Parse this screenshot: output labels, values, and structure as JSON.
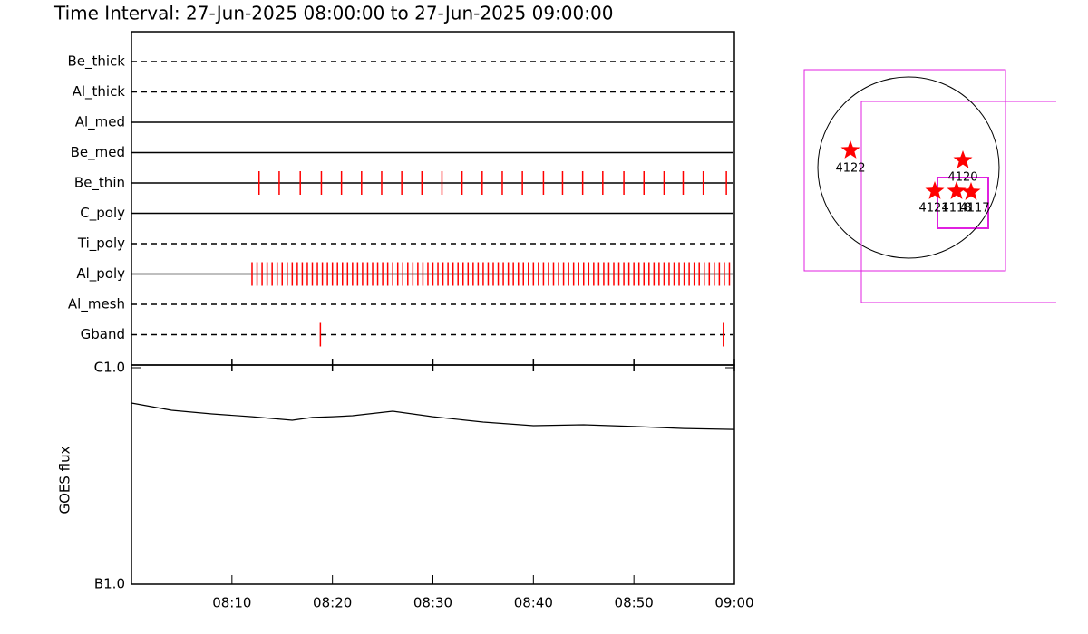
{
  "chart_data": [
    {
      "type": "timeline",
      "title": "Time Interval: 27-Jun-2025 08:00:00 to 27-Jun-2025 09:00:00",
      "xlim": [
        0,
        60
      ],
      "event_color": "#ff0000",
      "rows": [
        {
          "name": "Be_thick",
          "line": "dashed",
          "events": []
        },
        {
          "name": "Al_thick",
          "line": "dashed",
          "events": []
        },
        {
          "name": "Al_med",
          "line": "solid",
          "events": []
        },
        {
          "name": "Be_med",
          "line": "solid",
          "events": []
        },
        {
          "name": "Be_thin",
          "line": "solid",
          "events": [
            12.7,
            14.7,
            16.8,
            18.9,
            20.9,
            22.9,
            24.9,
            26.9,
            28.9,
            30.9,
            32.9,
            34.9,
            36.9,
            38.9,
            41.0,
            42.9,
            44.9,
            46.9,
            49.0,
            51.0,
            53.0,
            54.9,
            56.9,
            59.2
          ]
        },
        {
          "name": "C_poly",
          "line": "solid",
          "events": []
        },
        {
          "name": "Ti_poly",
          "line": "dashed",
          "events": []
        },
        {
          "name": "Al_poly",
          "line": "solid",
          "events": [
            12.0,
            12.5,
            13.0,
            13.5,
            14.0,
            14.5,
            15.0,
            15.5,
            16.0,
            16.5,
            17.0,
            17.5,
            18.0,
            18.5,
            19.0,
            19.5,
            20.0,
            20.5,
            21.0,
            21.5,
            22.0,
            22.5,
            23.0,
            23.5,
            24.0,
            24.5,
            25.0,
            25.5,
            26.0,
            26.5,
            27.0,
            27.5,
            28.0,
            28.5,
            29.0,
            29.5,
            30.0,
            30.5,
            31.0,
            31.5,
            32.0,
            32.5,
            33.0,
            33.5,
            34.0,
            34.5,
            35.0,
            35.5,
            36.0,
            36.5,
            37.0,
            37.5,
            38.0,
            38.5,
            39.0,
            39.5,
            40.0,
            40.5,
            41.0,
            41.5,
            42.0,
            42.5,
            43.0,
            43.5,
            44.0,
            44.5,
            45.0,
            45.5,
            46.0,
            46.5,
            47.0,
            47.5,
            48.0,
            48.5,
            49.0,
            49.5,
            50.0,
            50.5,
            51.0,
            51.5,
            52.0,
            52.5,
            53.0,
            53.5,
            54.0,
            54.5,
            55.0,
            55.5,
            56.0,
            56.5,
            57.0,
            57.5,
            58.0,
            58.5,
            59.0,
            59.5
          ]
        },
        {
          "name": "Al_mesh",
          "line": "dashed",
          "events": []
        },
        {
          "name": "Gband",
          "line": "dashed",
          "events": [
            18.8,
            58.9
          ]
        }
      ]
    },
    {
      "type": "line",
      "y_label": "GOES flux",
      "log_y": true,
      "x": [
        0,
        4,
        8,
        12,
        16,
        18,
        20,
        22,
        26,
        30,
        35,
        40,
        45,
        50,
        55,
        60
      ],
      "values": [
        6.87e-06,
        6.36e-06,
        6.12e-06,
        5.94e-06,
        5.72e-06,
        5.89e-06,
        5.94e-06,
        6e-06,
        6.3e-06,
        5.94e-06,
        5.61e-06,
        5.4e-06,
        5.45e-06,
        5.35e-06,
        5.24e-06,
        5.19e-06
      ],
      "color": "#000000",
      "xlim": [
        0,
        60
      ],
      "ylim": [
        1e-06,
        1e-05
      ],
      "xticks": [
        {
          "value": 10,
          "label": "08:10"
        },
        {
          "value": 20,
          "label": "08:20"
        },
        {
          "value": 30,
          "label": "08:30"
        },
        {
          "value": 40,
          "label": "08:40"
        },
        {
          "value": 50,
          "label": "08:50"
        },
        {
          "value": 60,
          "label": "09:00"
        }
      ],
      "yticks": [
        {
          "value": 1e-06,
          "label": "B1.0"
        },
        {
          "value": 1e-05,
          "label": "C1.0"
        }
      ]
    }
  ],
  "map": {
    "regions": [
      "4122",
      "4120",
      "4121",
      "4118",
      "4117"
    ]
  }
}
